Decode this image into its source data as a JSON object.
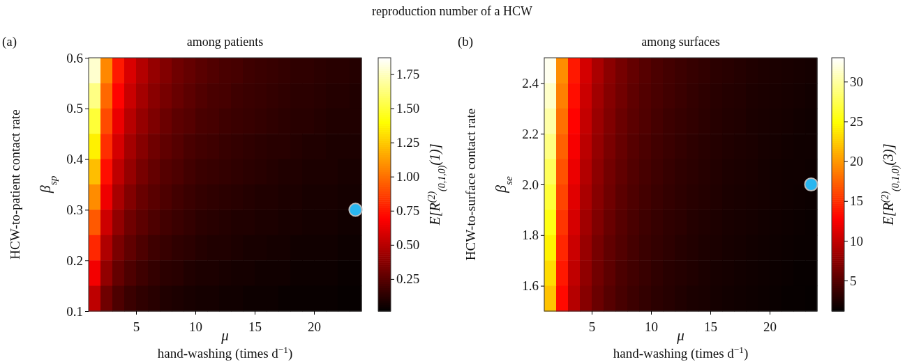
{
  "chart_data": [
    {
      "type": "heatmap",
      "title": "among patients",
      "xlabel": "μ\nhand-washing (times d$^{−1}$)",
      "ylabel": "HCW-to-patient contact rate\nβ$_{sp}$",
      "clabel": "E[R$^{(2)}$$_{(0,1,0)}$(1)]",
      "annotations": [
        "reproduction number of a HCW",
        "(a)"
      ],
      "xlim": [
        1,
        24
      ],
      "xticks": [
        5,
        10,
        15,
        20
      ],
      "ylim": [
        0.1,
        0.6
      ],
      "yticks": [
        0.1,
        0.2,
        0.3,
        0.4,
        0.5,
        0.6
      ],
      "clim": [
        0.015,
        1.87
      ],
      "cticks": [
        {
          "value": 0.25,
          "label": "0.25"
        },
        {
          "value": 0.5,
          "label": "0.50"
        },
        {
          "value": 0.75,
          "label": "0.75"
        },
        {
          "value": 1.0,
          "label": "1.00"
        },
        {
          "value": 1.25,
          "label": "1.25"
        },
        {
          "value": 1.5,
          "label": "1.50"
        },
        {
          "value": 1.75,
          "label": "1.75"
        }
      ],
      "cells": [
        [
          1.78,
          1.07,
          0.76,
          0.59,
          0.49,
          0.41,
          0.36,
          0.31,
          0.28,
          0.25,
          0.23,
          0.21,
          0.2,
          0.18,
          0.17,
          0.16,
          0.15,
          0.14,
          0.14,
          0.13,
          0.12,
          0.12,
          0.11
        ],
        [
          1.64,
          0.98,
          0.7,
          0.55,
          0.45,
          0.38,
          0.33,
          0.29,
          0.26,
          0.23,
          0.21,
          0.2,
          0.18,
          0.17,
          0.16,
          0.15,
          0.14,
          0.13,
          0.13,
          0.12,
          0.11,
          0.11,
          0.1
        ],
        [
          1.5,
          0.9,
          0.64,
          0.5,
          0.41,
          0.35,
          0.3,
          0.26,
          0.24,
          0.21,
          0.2,
          0.18,
          0.17,
          0.16,
          0.15,
          0.14,
          0.13,
          0.12,
          0.12,
          0.11,
          0.1,
          0.1,
          0.1
        ],
        [
          1.36,
          0.82,
          0.58,
          0.45,
          0.37,
          0.31,
          0.27,
          0.24,
          0.21,
          0.19,
          0.18,
          0.16,
          0.15,
          0.14,
          0.13,
          0.12,
          0.12,
          0.11,
          0.1,
          0.1,
          0.09,
          0.09,
          0.09
        ],
        [
          1.22,
          0.73,
          0.52,
          0.41,
          0.33,
          0.28,
          0.24,
          0.22,
          0.19,
          0.17,
          0.16,
          0.15,
          0.14,
          0.13,
          0.12,
          0.11,
          0.1,
          0.1,
          0.09,
          0.09,
          0.09,
          0.08,
          0.08
        ],
        [
          1.08,
          0.65,
          0.46,
          0.36,
          0.29,
          0.25,
          0.22,
          0.19,
          0.17,
          0.15,
          0.14,
          0.13,
          0.12,
          0.11,
          0.1,
          0.1,
          0.09,
          0.09,
          0.08,
          0.08,
          0.08,
          0.07,
          0.07
        ],
        [
          0.94,
          0.56,
          0.4,
          0.31,
          0.26,
          0.22,
          0.19,
          0.17,
          0.15,
          0.13,
          0.12,
          0.11,
          0.1,
          0.1,
          0.09,
          0.09,
          0.08,
          0.08,
          0.07,
          0.07,
          0.07,
          0.06,
          0.06
        ],
        [
          0.8,
          0.48,
          0.34,
          0.27,
          0.22,
          0.18,
          0.16,
          0.14,
          0.13,
          0.11,
          0.1,
          0.1,
          0.09,
          0.08,
          0.08,
          0.07,
          0.07,
          0.06,
          0.06,
          0.06,
          0.06,
          0.05,
          0.05
        ],
        [
          0.66,
          0.4,
          0.28,
          0.22,
          0.18,
          0.15,
          0.13,
          0.12,
          0.1,
          0.09,
          0.09,
          0.08,
          0.07,
          0.07,
          0.06,
          0.06,
          0.06,
          0.05,
          0.05,
          0.05,
          0.05,
          0.04,
          0.04
        ],
        [
          0.52,
          0.31,
          0.22,
          0.17,
          0.14,
          0.12,
          0.1,
          0.09,
          0.08,
          0.07,
          0.07,
          0.06,
          0.06,
          0.05,
          0.05,
          0.05,
          0.04,
          0.04,
          0.04,
          0.04,
          0.04,
          0.03,
          0.03
        ]
      ],
      "series": [
        {
          "type": "scatter",
          "x": [
            23.5
          ],
          "values": [
            0.3
          ],
          "color": "#29b6f0"
        }
      ],
      "marker": "circle",
      "grid": false
    },
    {
      "type": "heatmap",
      "title": "among surfaces",
      "xlabel": "μ\nhand-washing (times d$^{−1}$)",
      "ylabel": "HCW-to-surface contact rate\nβ$_{se}$",
      "clabel": "E[R$^{(2)}$$_{(0,1,0)}$(3)]",
      "annotations": [
        "(b)"
      ],
      "xlim": [
        1,
        24
      ],
      "xticks": [
        5,
        10,
        15,
        20
      ],
      "ylim": [
        1.5,
        2.5
      ],
      "yticks": [
        1.6,
        1.8,
        {
          "value": 2.0,
          "label": "2.0"
        },
        2.2,
        2.4
      ],
      "clim": [
        1.16,
        33
      ],
      "cticks": [
        5,
        10,
        15,
        20,
        25,
        30
      ],
      "cells": [
        [
          32.5,
          19.5,
          13.9,
          10.8,
          8.9,
          7.5,
          6.5,
          5.7,
          5.1,
          4.6,
          4.2,
          3.9,
          3.6,
          3.4,
          3.1,
          3.0,
          2.8,
          2.6,
          2.5,
          2.4,
          2.3,
          2.2,
          2.1
        ],
        [
          31.3,
          18.8,
          13.4,
          10.4,
          8.5,
          7.2,
          6.3,
          5.5,
          4.9,
          4.5,
          4.1,
          3.8,
          3.5,
          3.2,
          3.0,
          2.8,
          2.7,
          2.5,
          2.4,
          2.3,
          2.2,
          2.1,
          2.0
        ],
        [
          30.2,
          18.1,
          12.9,
          10.1,
          8.2,
          7.0,
          6.0,
          5.3,
          4.8,
          4.3,
          3.9,
          3.6,
          3.4,
          3.1,
          2.9,
          2.7,
          2.6,
          2.4,
          2.3,
          2.2,
          2.1,
          2.0,
          1.9
        ],
        [
          29.0,
          17.4,
          12.4,
          9.7,
          7.9,
          6.7,
          5.8,
          5.1,
          4.6,
          4.1,
          3.8,
          3.5,
          3.2,
          3.0,
          2.8,
          2.6,
          2.5,
          2.4,
          2.2,
          2.1,
          2.0,
          1.9,
          1.9
        ],
        [
          27.8,
          16.7,
          11.9,
          9.3,
          7.6,
          6.4,
          5.6,
          4.9,
          4.4,
          4.0,
          3.6,
          3.3,
          3.1,
          2.9,
          2.7,
          2.5,
          2.4,
          2.3,
          2.1,
          2.0,
          1.9,
          1.9,
          1.8
        ],
        [
          26.7,
          16.0,
          11.4,
          8.9,
          7.3,
          6.2,
          5.3,
          4.7,
          4.2,
          3.8,
          3.5,
          3.2,
          3.0,
          2.8,
          2.6,
          2.4,
          2.3,
          2.2,
          2.1,
          2.0,
          1.9,
          1.8,
          1.7
        ],
        [
          25.5,
          15.3,
          10.9,
          8.5,
          7.0,
          5.9,
          5.1,
          4.5,
          4.0,
          3.6,
          3.3,
          3.1,
          2.8,
          2.6,
          2.5,
          2.3,
          2.2,
          2.1,
          2.0,
          1.9,
          1.8,
          1.7,
          1.6
        ],
        [
          24.3,
          14.6,
          10.4,
          8.1,
          6.6,
          5.6,
          4.9,
          4.3,
          3.8,
          3.5,
          3.2,
          2.9,
          2.7,
          2.5,
          2.4,
          2.2,
          2.1,
          2.0,
          1.9,
          1.8,
          1.7,
          1.6,
          1.6
        ],
        [
          23.2,
          13.9,
          9.9,
          7.7,
          6.3,
          5.4,
          4.6,
          4.1,
          3.7,
          3.3,
          3.0,
          2.8,
          2.6,
          2.4,
          2.2,
          2.1,
          2.0,
          1.9,
          1.8,
          1.7,
          1.6,
          1.5,
          1.5
        ],
        [
          22.0,
          13.2,
          9.4,
          7.3,
          6.0,
          5.1,
          4.4,
          3.9,
          3.5,
          3.1,
          2.9,
          2.6,
          2.4,
          2.3,
          2.1,
          2.0,
          1.9,
          1.8,
          1.7,
          1.6,
          1.5,
          1.5,
          1.4
        ]
      ],
      "series": [
        {
          "type": "scatter",
          "x": [
            23.5
          ],
          "values": [
            2.0
          ],
          "color": "#29b6f0"
        }
      ],
      "marker": "circle",
      "grid": false
    }
  ]
}
